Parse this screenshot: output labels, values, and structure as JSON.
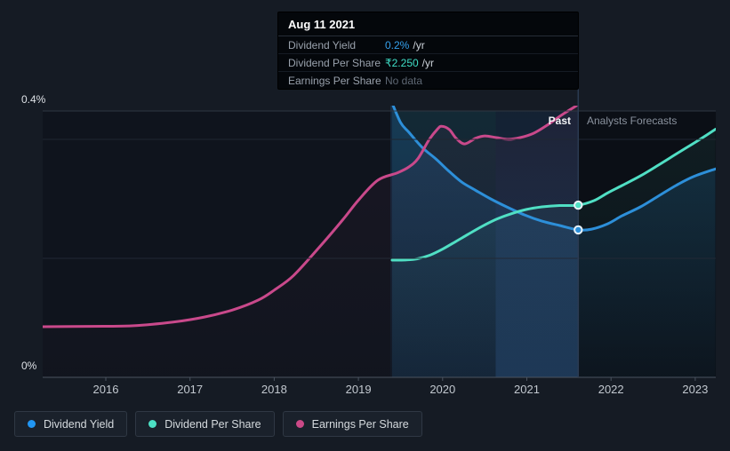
{
  "tooltip": {
    "date": "Aug 11 2021",
    "rows": [
      {
        "label": "Dividend Yield",
        "value": "0.2%",
        "suffix": "/yr",
        "value_color": "#35a0ec"
      },
      {
        "label": "Dividend Per Share",
        "value": "₹2.250",
        "suffix": "/yr",
        "value_color": "#3fdfc7"
      },
      {
        "label": "Earnings Per Share",
        "value": "No data",
        "suffix": "",
        "value_color": "#5e6773"
      }
    ]
  },
  "axis": {
    "y_top_label": "0.4%",
    "y_bottom_label": "0%",
    "x_labels": [
      "2016",
      "2017",
      "2018",
      "2019",
      "2020",
      "2021",
      "2022",
      "2023"
    ]
  },
  "annotations": {
    "past_label": "Past",
    "forecast_label": "Analysts Forecasts"
  },
  "legend": [
    {
      "label": "Dividend Yield",
      "color": "#2196f3"
    },
    {
      "label": "Dividend Per Share",
      "color": "#4ce0c4"
    },
    {
      "label": "Earnings Per Share",
      "color": "#cb4987"
    }
  ],
  "chart_data": {
    "type": "line",
    "x_unit": "year",
    "xlim": [
      2015.25,
      2023.245
    ],
    "ylim": [
      0,
      0.4
    ],
    "y_ticks": [
      {
        "label": "0.4%",
        "value": 0.4
      },
      {
        "label": "0%",
        "value": 0
      }
    ],
    "grid": "horizontal",
    "legend_position": "bottom-left",
    "divider_x": 2021.61,
    "highlight_bands": [
      {
        "from": 2019.4,
        "to": 2020.63,
        "style": "teal-blue"
      },
      {
        "from": 2020.63,
        "to": 2021.61,
        "style": "bright-blue"
      }
    ],
    "forecast_region": {
      "from": 2021.61,
      "to": 2023.245
    },
    "series": [
      {
        "name": "Dividend Yield",
        "unit": "%/yr",
        "color": "#2d8fd9",
        "area_color_top": "rgba(39,134,219,0.20)",
        "area_color_bottom": "rgba(39,134,219,0.03)",
        "marker": [
          2021.61,
          0.2215
        ],
        "points": [
          [
            2019.38,
            0.418
          ],
          [
            2019.5,
            0.383
          ],
          [
            2019.6,
            0.368
          ],
          [
            2019.76,
            0.345
          ],
          [
            2019.92,
            0.328
          ],
          [
            2020.08,
            0.309
          ],
          [
            2020.23,
            0.293
          ],
          [
            2020.39,
            0.281
          ],
          [
            2020.57,
            0.268
          ],
          [
            2020.76,
            0.256
          ],
          [
            2020.97,
            0.244
          ],
          [
            2021.18,
            0.2345
          ],
          [
            2021.39,
            0.228
          ],
          [
            2021.61,
            0.2215
          ],
          [
            2021.77,
            0.2225
          ],
          [
            2021.96,
            0.2305
          ],
          [
            2022.13,
            0.2425
          ],
          [
            2022.35,
            0.256
          ],
          [
            2022.56,
            0.272
          ],
          [
            2022.77,
            0.288
          ],
          [
            2022.98,
            0.3015
          ],
          [
            2023.24,
            0.313
          ]
        ]
      },
      {
        "name": "Dividend Per Share",
        "unit": "₹/yr",
        "color": "#50dfc4",
        "area_color_top": "rgba(80,223,196,0.07)",
        "area_color_bottom": "rgba(80,223,196,0.01)",
        "marker": [
          2021.61,
          0.2585
        ],
        "points": [
          [
            2019.4,
            0.176
          ],
          [
            2019.55,
            0.1762
          ],
          [
            2019.7,
            0.178
          ],
          [
            2019.85,
            0.1835
          ],
          [
            2020.0,
            0.1925
          ],
          [
            2020.15,
            0.2035
          ],
          [
            2020.3,
            0.2145
          ],
          [
            2020.45,
            0.2255
          ],
          [
            2020.64,
            0.2375
          ],
          [
            2020.81,
            0.2455
          ],
          [
            2020.99,
            0.252
          ],
          [
            2021.18,
            0.256
          ],
          [
            2021.39,
            0.258
          ],
          [
            2021.61,
            0.2585
          ],
          [
            2021.8,
            0.2655
          ],
          [
            2021.96,
            0.277
          ],
          [
            2022.13,
            0.288
          ],
          [
            2022.35,
            0.3025
          ],
          [
            2022.56,
            0.3185
          ],
          [
            2022.8,
            0.3375
          ],
          [
            2023.02,
            0.3545
          ],
          [
            2023.24,
            0.3725
          ]
        ]
      },
      {
        "name": "Earnings Per Share",
        "unit": "no data at cursor",
        "color": "#c9498b",
        "area_color_top": "rgba(201,73,139,0.06)",
        "area_color_bottom": "rgba(201,73,139,0.01)",
        "marker": null,
        "points": [
          [
            2015.25,
            0.076
          ],
          [
            2015.8,
            0.0765
          ],
          [
            2016.33,
            0.0775
          ],
          [
            2016.8,
            0.083
          ],
          [
            2017.17,
            0.0905
          ],
          [
            2017.5,
            0.101
          ],
          [
            2017.81,
            0.116
          ],
          [
            2018.0,
            0.131
          ],
          [
            2018.23,
            0.153
          ],
          [
            2018.54,
            0.196
          ],
          [
            2018.81,
            0.236
          ],
          [
            2019.0,
            0.266
          ],
          [
            2019.23,
            0.296
          ],
          [
            2019.46,
            0.307
          ],
          [
            2019.6,
            0.316
          ],
          [
            2019.71,
            0.329
          ],
          [
            2019.84,
            0.357
          ],
          [
            2019.94,
            0.373
          ],
          [
            2019.99,
            0.377
          ],
          [
            2020.08,
            0.372
          ],
          [
            2020.16,
            0.359
          ],
          [
            2020.26,
            0.3505
          ],
          [
            2020.39,
            0.359
          ],
          [
            2020.5,
            0.3625
          ],
          [
            2020.64,
            0.36
          ],
          [
            2020.78,
            0.3575
          ],
          [
            2020.92,
            0.36
          ],
          [
            2021.08,
            0.3665
          ],
          [
            2021.24,
            0.3785
          ],
          [
            2021.42,
            0.3945
          ],
          [
            2021.61,
            0.4095
          ]
        ]
      }
    ]
  }
}
